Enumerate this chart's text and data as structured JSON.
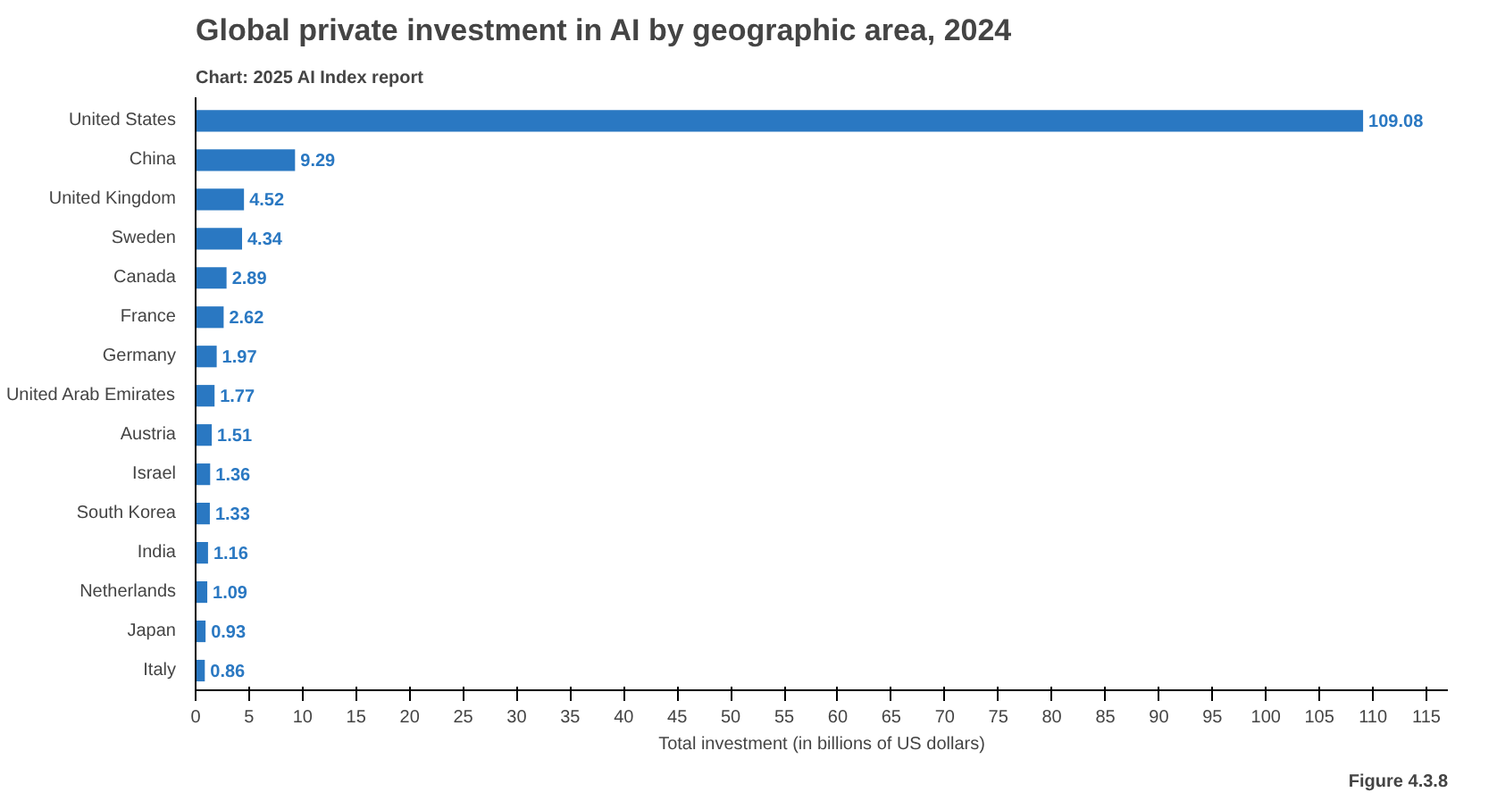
{
  "chart_data": {
    "type": "bar",
    "orientation": "horizontal",
    "title": "Global private investment in AI by geographic area, 2024",
    "subtitle": "Chart: 2025 AI Index report",
    "xlabel": "Total investment (in billions of US dollars)",
    "categories": [
      "United States",
      "China",
      "United Kingdom",
      "Sweden",
      "Canada",
      "France",
      "Germany",
      "United Arab Emirates",
      "Austria",
      "Israel",
      "South Korea",
      "India",
      "Netherlands",
      "Japan",
      "Italy"
    ],
    "values": [
      109.08,
      9.29,
      4.52,
      4.34,
      2.89,
      2.62,
      1.97,
      1.77,
      1.51,
      1.36,
      1.33,
      1.16,
      1.09,
      0.93,
      0.86
    ],
    "color": "#2a78c2",
    "data_labels": true,
    "grid": false,
    "xlim": [
      0,
      117
    ],
    "xticks": [
      0,
      5,
      10,
      15,
      20,
      25,
      30,
      35,
      40,
      45,
      50,
      55,
      60,
      65,
      70,
      75,
      80,
      85,
      90,
      95,
      100,
      105,
      110,
      115
    ],
    "annotations": [
      "Figure 4.3.8"
    ]
  }
}
